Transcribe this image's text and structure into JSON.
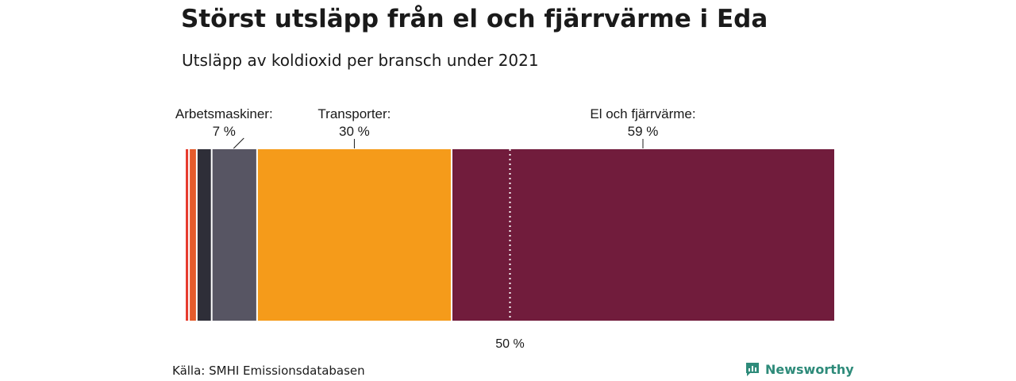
{
  "title": "Störst utsläpp från el och fjärrvärme i Eda",
  "subtitle": "Utsläpp av koldioxid per bransch under 2021",
  "source": "Källa: SMHI Emissionsdatabasen",
  "brand": {
    "name": "Newsworthy",
    "color": "#2e8b7a"
  },
  "chart_data": {
    "type": "bar",
    "orientation": "stacked-horizontal",
    "unit": "%",
    "segments": [
      {
        "value": 0.5,
        "color": "#e63b2e",
        "label": "",
        "pct_label": ""
      },
      {
        "value": 1.2,
        "color": "#e55b2b",
        "label": "",
        "pct_label": ""
      },
      {
        "value": 2.3,
        "color": "#2e2e38",
        "label": "",
        "pct_label": ""
      },
      {
        "value": 7,
        "color": "#575563",
        "label": "Arbetsmaskiner:",
        "pct_label": "7 %"
      },
      {
        "value": 30,
        "color": "#f59b1a",
        "label": "Transporter:",
        "pct_label": "30 %"
      },
      {
        "value": 59,
        "color": "#711c3c",
        "label": "El och fjärrvärme:",
        "pct_label": "59 %"
      }
    ],
    "reference_line": {
      "value": 50,
      "label": "50 %"
    },
    "xlim": [
      0,
      100
    ]
  }
}
